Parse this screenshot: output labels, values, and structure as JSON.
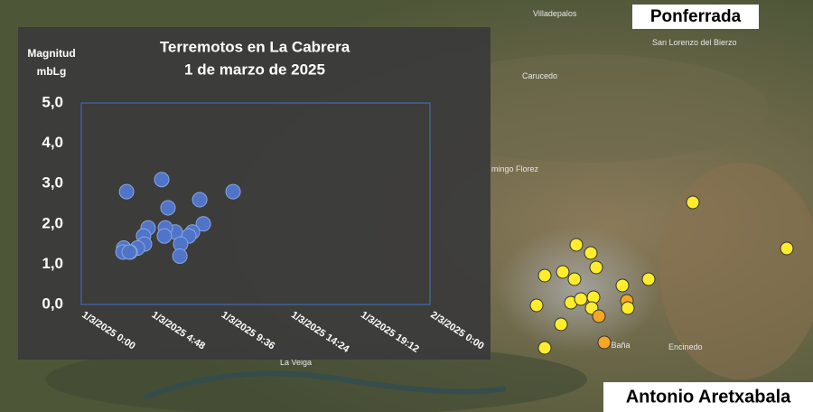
{
  "chart_data": {
    "type": "scatter",
    "title": "Terremotos en La Cabrera",
    "subtitle": "1 de marzo de 2025",
    "ylabel": "Magnitud",
    "yunit": "mbLg",
    "color": "#4f74c8",
    "grid": false,
    "xlim": [
      "2025-03-01T00:00",
      "2025-03-02T00:00"
    ],
    "xticks": [
      {
        "value": "2025-03-01T00:00",
        "label": "1/3/2025 0:00"
      },
      {
        "value": "2025-03-01T04:48",
        "label": "1/3/2025 4:48"
      },
      {
        "value": "2025-03-01T09:36",
        "label": "1/3/2025 9:36"
      },
      {
        "value": "2025-03-01T14:24",
        "label": "1/3/2025 14:24"
      },
      {
        "value": "2025-03-01T19:12",
        "label": "1/3/2025 19:12"
      },
      {
        "value": "2025-03-02T00:00",
        "label": "2/3/2025 0:00"
      }
    ],
    "ylim": [
      0,
      5
    ],
    "yticks": [
      {
        "value": 0,
        "label": "0,0"
      },
      {
        "value": 1,
        "label": "1,0"
      },
      {
        "value": 2,
        "label": "2,0"
      },
      {
        "value": 3,
        "label": "3,0"
      },
      {
        "value": 4,
        "label": "4,0"
      },
      {
        "value": 5,
        "label": "5,0"
      }
    ],
    "x": [
      "2025-03-01T03:07",
      "2025-03-01T05:32",
      "2025-03-01T05:58",
      "2025-03-01T08:09",
      "2025-03-01T10:27",
      "2025-03-01T08:24",
      "2025-03-01T07:39",
      "2025-03-01T07:24",
      "2025-03-01T06:28",
      "2025-03-01T05:47",
      "2025-03-01T05:43",
      "2025-03-01T06:50",
      "2025-03-01T06:47",
      "2025-03-01T04:36",
      "2025-03-01T04:17",
      "2025-03-01T04:21",
      "2025-03-01T03:52",
      "2025-03-01T03:22",
      "2025-03-01T02:55",
      "2025-03-01T02:52",
      "2025-03-01T03:18"
    ],
    "values": [
      2.8,
      3.1,
      2.4,
      2.6,
      2.8,
      2.0,
      1.8,
      1.7,
      1.8,
      1.9,
      1.7,
      1.5,
      1.2,
      1.9,
      1.7,
      1.5,
      1.4,
      1.3,
      1.4,
      1.3,
      1.3
    ]
  },
  "map": {
    "labels": [
      "Villadepalos",
      "San Lorenzo del Bierzo",
      "Carucedo",
      "mingo Florez",
      "La Baña",
      "Encinedo",
      "La Veiga"
    ],
    "banners": [
      "Ponferrada",
      "Antonio Aretxabala"
    ]
  }
}
